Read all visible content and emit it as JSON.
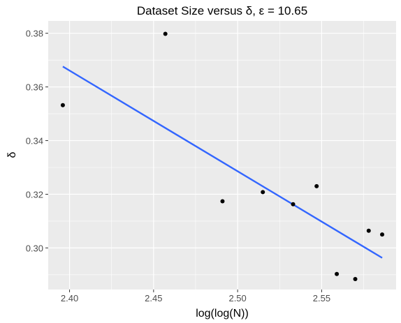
{
  "chart_data": {
    "type": "scatter",
    "title": "Dataset Size versus δ, ε = 10.65",
    "xlabel": "log(log(N))",
    "ylabel": "δ",
    "xlim": [
      2.3873,
      2.5943
    ],
    "ylim": [
      0.2845,
      0.3846
    ],
    "x_ticks": [
      2.4,
      2.45,
      2.5,
      2.55
    ],
    "x_tick_labels": [
      "2.40",
      "2.45",
      "2.50",
      "2.55"
    ],
    "y_ticks": [
      0.3,
      0.32,
      0.34,
      0.36,
      0.38
    ],
    "y_tick_labels": [
      "0.30",
      "0.32",
      "0.34",
      "0.36",
      "0.38"
    ],
    "points": [
      {
        "x": 2.396,
        "y": 0.3532
      },
      {
        "x": 2.457,
        "y": 0.3798
      },
      {
        "x": 2.491,
        "y": 0.3174
      },
      {
        "x": 2.515,
        "y": 0.3208
      },
      {
        "x": 2.533,
        "y": 0.3163
      },
      {
        "x": 2.547,
        "y": 0.323
      },
      {
        "x": 2.559,
        "y": 0.2903
      },
      {
        "x": 2.57,
        "y": 0.2884
      },
      {
        "x": 2.578,
        "y": 0.3064
      },
      {
        "x": 2.586,
        "y": 0.305
      }
    ],
    "fit_line": {
      "x": [
        2.396,
        2.586
      ],
      "y": [
        0.3676,
        0.2963
      ]
    },
    "grid": true,
    "colors": {
      "panel": "#ebebeb",
      "grid": "#ffffff",
      "point": "#000000",
      "fit": "#3366ff"
    }
  }
}
